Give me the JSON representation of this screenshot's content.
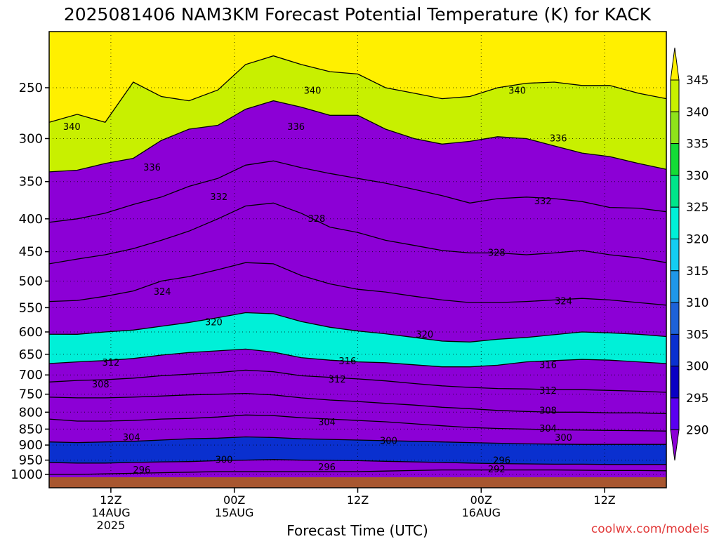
{
  "chart_data": {
    "type": "area",
    "title": "2025081406 NAM3KM Forecast Potential Temperature (K) for KACK",
    "xlabel": "Forecast Time (UTC)",
    "ylabel": "",
    "x_ticks": [
      {
        "line1": "12Z",
        "line2": "14AUG",
        "line3": "2025",
        "hour": 6
      },
      {
        "line1": "00Z",
        "line2": "15AUG",
        "line3": "",
        "hour": 18
      },
      {
        "line1": "12Z",
        "line2": "",
        "line3": "",
        "hour": 30
      },
      {
        "line1": "00Z",
        "line2": "16AUG",
        "line3": "",
        "hour": 42
      },
      {
        "line1": "12Z",
        "line2": "",
        "line3": "",
        "hour": 54
      }
    ],
    "xlim": [
      0,
      60
    ],
    "y_ticks": [
      250,
      300,
      350,
      400,
      450,
      500,
      550,
      600,
      650,
      700,
      750,
      800,
      850,
      900,
      950,
      1000
    ],
    "ylim": [
      200,
      1000
    ],
    "y_scale": "log-pressure (inverted)",
    "grid": true,
    "colorbar": {
      "levels": [
        290,
        295,
        300,
        305,
        310,
        315,
        320,
        325,
        330,
        335,
        340,
        345
      ],
      "colors": [
        "#8c00d6",
        "#5a00f0",
        "#0a00c4",
        "#0a30cf",
        "#1e62d8",
        "#1f97e8",
        "#13cdf2",
        "#00f0d8",
        "#00e58a",
        "#14dc36",
        "#8fe31a",
        "#c8f000",
        "#fff000"
      ]
    },
    "series": [
      {
        "level": 340,
        "values": [
          283,
          275,
          283,
          245,
          258,
          262,
          252,
          230,
          223,
          230,
          236,
          238,
          250,
          255,
          260,
          258,
          250,
          246,
          245,
          248,
          248,
          255,
          260
        ]
      },
      {
        "level": 336,
        "values": [
          338,
          336,
          328,
          322,
          302,
          290,
          286,
          270,
          262,
          268,
          276,
          276,
          290,
          300,
          306,
          303,
          298,
          300,
          308,
          316,
          320,
          328,
          335
        ]
      },
      {
        "level": 332,
        "values": [
          405,
          400,
          392,
          380,
          370,
          356,
          346,
          330,
          325,
          333,
          340,
          346,
          352,
          360,
          368,
          378,
          372,
          370,
          372,
          376,
          384,
          385,
          390
        ]
      },
      {
        "level": 328,
        "values": [
          470,
          462,
          455,
          445,
          432,
          418,
          400,
          382,
          378,
          392,
          412,
          420,
          432,
          440,
          448,
          452,
          452,
          455,
          452,
          448,
          455,
          460,
          468
        ]
      },
      {
        "level": 324,
        "values": [
          538,
          536,
          528,
          518,
          500,
          492,
          480,
          468,
          470,
          490,
          505,
          515,
          520,
          528,
          535,
          540,
          540,
          538,
          535,
          532,
          535,
          540,
          545
        ]
      },
      {
        "level": 320,
        "values": [
          605,
          605,
          600,
          596,
          588,
          580,
          570,
          560,
          562,
          578,
          590,
          598,
          604,
          612,
          620,
          622,
          616,
          612,
          606,
          600,
          602,
          605,
          610
        ]
      },
      {
        "level": 316,
        "values": [
          672,
          668,
          665,
          660,
          652,
          646,
          642,
          638,
          645,
          658,
          664,
          668,
          670,
          675,
          680,
          680,
          676,
          668,
          665,
          662,
          664,
          668,
          672
        ]
      },
      {
        "level": 312,
        "values": [
          718,
          714,
          712,
          708,
          702,
          698,
          694,
          688,
          692,
          702,
          706,
          710,
          715,
          722,
          728,
          732,
          735,
          736,
          738,
          738,
          740,
          742,
          745
        ]
      },
      {
        "level": 308,
        "values": [
          758,
          760,
          760,
          758,
          755,
          752,
          750,
          748,
          752,
          760,
          766,
          770,
          775,
          780,
          786,
          790,
          795,
          798,
          800,
          800,
          802,
          802,
          804
        ]
      },
      {
        "level": 304,
        "values": [
          820,
          826,
          826,
          824,
          820,
          818,
          814,
          808,
          810,
          816,
          820,
          824,
          828,
          834,
          840,
          845,
          848,
          850,
          852,
          853,
          854,
          855,
          856
        ]
      },
      {
        "level": 300,
        "values": [
          890,
          892,
          890,
          888,
          884,
          880,
          878,
          874,
          876,
          880,
          882,
          884,
          886,
          888,
          890,
          892,
          894,
          896,
          897,
          898,
          898,
          898,
          898
        ]
      },
      {
        "level": 296,
        "values": [
          958,
          960,
          960,
          958,
          956,
          955,
          952,
          950,
          948,
          950,
          951,
          952,
          954,
          956,
          958,
          960,
          962,
          963,
          964,
          964,
          965,
          965,
          965
        ]
      },
      {
        "level": 292,
        "values": [
          1000,
          1000,
          998,
          996,
          994,
          992,
          990,
          990,
          990,
          990,
          990,
          990,
          988,
          986,
          984,
          984,
          984,
          984,
          984,
          985,
          986,
          986,
          987
        ]
      }
    ],
    "x": [
      0,
      2.73,
      5.45,
      8.18,
      10.9,
      13.6,
      16.4,
      19.1,
      21.8,
      24.5,
      27.3,
      30,
      32.7,
      35.5,
      38.2,
      40.9,
      43.6,
      46.4,
      49.1,
      51.8,
      54.5,
      57.3,
      60
    ],
    "contour_labels": [
      {
        "text": "340",
        "x": 2.2,
        "p": 288
      },
      {
        "text": "340",
        "x": 25.6,
        "p": 253
      },
      {
        "text": "340",
        "x": 45.5,
        "p": 253
      },
      {
        "text": "336",
        "x": 10,
        "p": 333
      },
      {
        "text": "336",
        "x": 24,
        "p": 288
      },
      {
        "text": "336",
        "x": 49.5,
        "p": 300
      },
      {
        "text": "332",
        "x": 16.5,
        "p": 370
      },
      {
        "text": "332",
        "x": 48,
        "p": 376
      },
      {
        "text": "328",
        "x": 26,
        "p": 400
      },
      {
        "text": "328",
        "x": 43.5,
        "p": 452
      },
      {
        "text": "324",
        "x": 11,
        "p": 520
      },
      {
        "text": "324",
        "x": 50,
        "p": 538
      },
      {
        "text": "320",
        "x": 16,
        "p": 580
      },
      {
        "text": "320",
        "x": 36.5,
        "p": 606
      },
      {
        "text": "316",
        "x": 29,
        "p": 667
      },
      {
        "text": "316",
        "x": 48.5,
        "p": 676
      },
      {
        "text": "312",
        "x": 6,
        "p": 670
      },
      {
        "text": "312",
        "x": 28,
        "p": 712
      },
      {
        "text": "312",
        "x": 48.5,
        "p": 741
      },
      {
        "text": "308",
        "x": 5,
        "p": 725
      },
      {
        "text": "308",
        "x": 48.5,
        "p": 796
      },
      {
        "text": "304",
        "x": 8,
        "p": 876
      },
      {
        "text": "304",
        "x": 27,
        "p": 830
      },
      {
        "text": "304",
        "x": 48.5,
        "p": 849
      },
      {
        "text": "300",
        "x": 17,
        "p": 950
      },
      {
        "text": "300",
        "x": 33,
        "p": 887
      },
      {
        "text": "300",
        "x": 50,
        "p": 877
      },
      {
        "text": "296",
        "x": 9,
        "p": 985
      },
      {
        "text": "296",
        "x": 27,
        "p": 975
      },
      {
        "text": "296",
        "x": 44,
        "p": 952
      },
      {
        "text": "292",
        "x": 43.5,
        "p": 983
      }
    ]
  },
  "credit": "coolwx.com/models"
}
